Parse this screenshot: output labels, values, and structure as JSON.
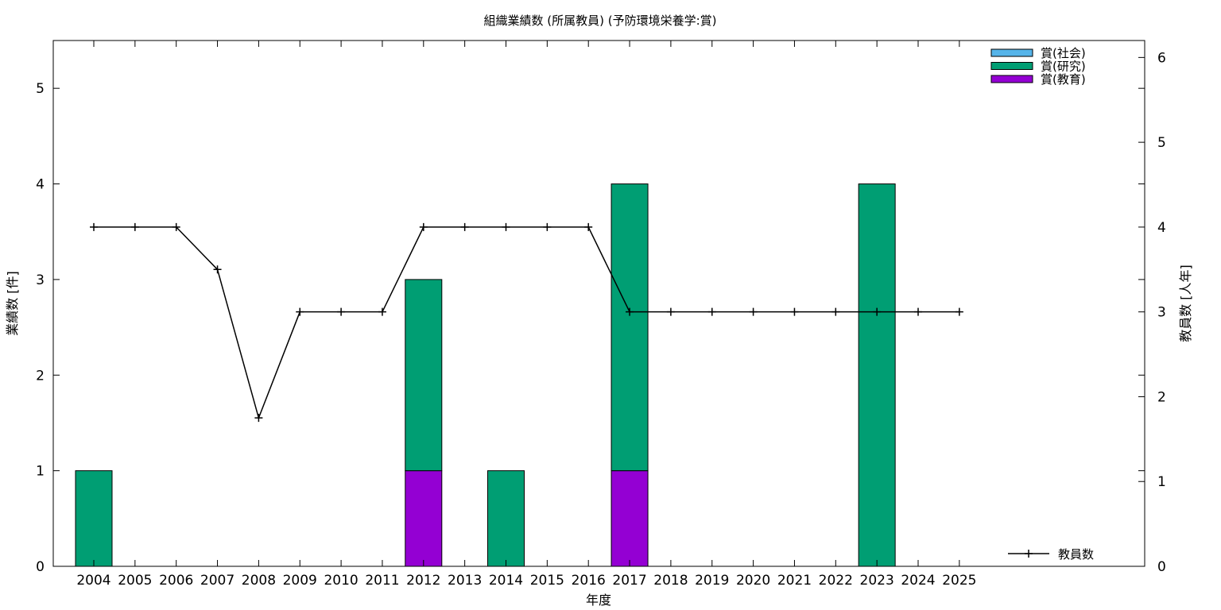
{
  "chart_data": {
    "type": "bar",
    "title": "組織業績数 (所属教員) (予防環境栄養学:賞)",
    "xlabel": "年度",
    "ylabel": "業績数 [件]",
    "y2label": "教員数 [人年]",
    "categories": [
      "2004",
      "2005",
      "2006",
      "2007",
      "2008",
      "2009",
      "2010",
      "2011",
      "2012",
      "2013",
      "2014",
      "2015",
      "2016",
      "2017",
      "2018",
      "2019",
      "2020",
      "2021",
      "2022",
      "2023",
      "2024",
      "2025"
    ],
    "stacked": true,
    "ylim": [
      0,
      5.5
    ],
    "yticks": [
      0,
      1,
      2,
      3,
      4,
      5
    ],
    "y2lim": [
      0,
      6.2
    ],
    "y2ticks": [
      0,
      1,
      2,
      3,
      4,
      5,
      6
    ],
    "grid": false,
    "series": [
      {
        "name": "賞(教育)",
        "color": "#9400d3",
        "values": [
          0,
          0,
          0,
          0,
          0,
          0,
          0,
          0,
          1,
          0,
          0,
          0,
          0,
          1,
          0,
          0,
          0,
          0,
          0,
          0,
          0,
          0
        ]
      },
      {
        "name": "賞(研究)",
        "color": "#009e73",
        "values": [
          1,
          0,
          0,
          0,
          0,
          0,
          0,
          0,
          2,
          0,
          1,
          0,
          0,
          3,
          0,
          0,
          0,
          0,
          0,
          4,
          0,
          0
        ]
      },
      {
        "name": "賞(社会)",
        "color": "#56b4e9",
        "values": [
          0,
          0,
          0,
          0,
          0,
          0,
          0,
          0,
          0,
          0,
          0,
          0,
          0,
          0,
          0,
          0,
          0,
          0,
          0,
          0,
          0,
          0
        ]
      }
    ],
    "legend_order": [
      "賞(社会)",
      "賞(研究)",
      "賞(教育)"
    ],
    "legend_position": "top-right",
    "line_series": {
      "name": "教員数",
      "axis": "y2",
      "color": "#000000",
      "values": [
        4,
        4,
        4,
        3.5,
        1.75,
        3,
        3,
        3,
        4,
        4,
        4,
        4,
        4,
        3,
        3,
        3,
        3,
        3,
        3,
        3,
        3,
        3
      ]
    }
  }
}
